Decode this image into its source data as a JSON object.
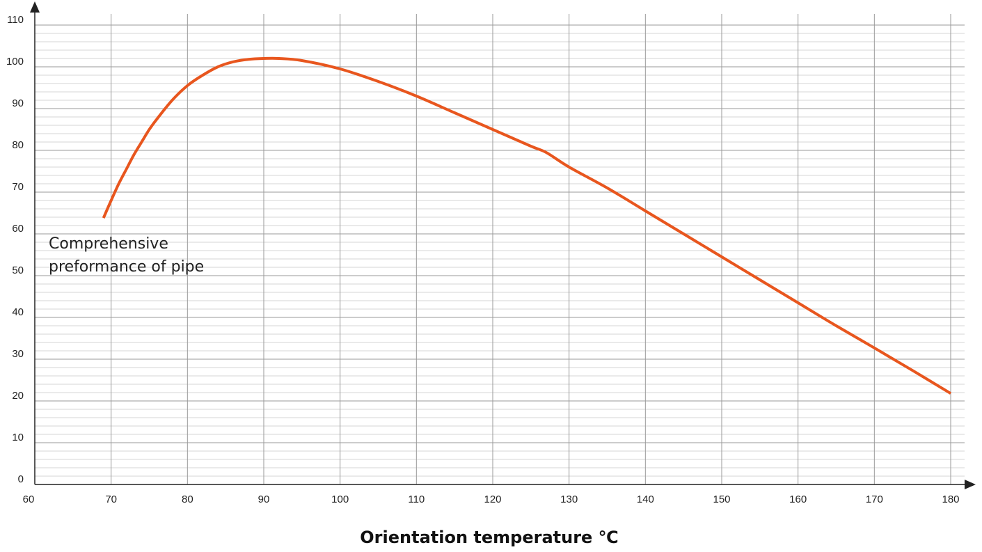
{
  "chart_data": {
    "type": "line",
    "xlabel": "Orientation temperature ℃",
    "ylabel": "",
    "xlim": [
      60,
      180
    ],
    "ylim": [
      0,
      110
    ],
    "x_ticks": [
      "60",
      "70",
      "80",
      "90",
      "100",
      "110",
      "120",
      "130",
      "140",
      "150",
      "160",
      "170",
      "180"
    ],
    "y_ticks": [
      "0",
      "10",
      "20",
      "30",
      "40",
      "50",
      "60",
      "70",
      "80",
      "90",
      "100",
      "110"
    ],
    "grid": true,
    "annotation": [
      "Comprehensive",
      "preformance of pipe"
    ],
    "series": [
      {
        "color": "#e8561e",
        "x": [
          69,
          70,
          71,
          72,
          73,
          74,
          75,
          76,
          78,
          80,
          82,
          84,
          86,
          88,
          90,
          92,
          95,
          100,
          105,
          110,
          115,
          120,
          125,
          127,
          130,
          135,
          140,
          145,
          150,
          155,
          160,
          165,
          170,
          175,
          180
        ],
        "y": [
          63.8,
          68,
          72,
          75.5,
          79,
          82,
          85,
          87.5,
          92,
          95.5,
          98,
          100,
          101.2,
          101.8,
          102,
          102,
          101.5,
          99.5,
          96.5,
          93,
          89,
          85,
          81,
          79.5,
          76,
          71,
          65.5,
          60,
          54.5,
          49,
          43.5,
          38,
          32.7,
          27.3,
          21.8
        ]
      }
    ]
  }
}
